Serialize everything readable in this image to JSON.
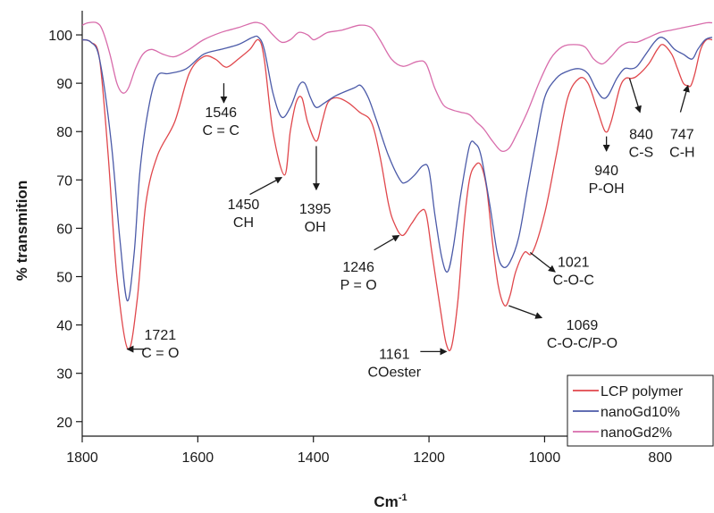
{
  "chart_data": {
    "type": "line",
    "xlabel": "Cm",
    "xlabel_sup": "-1",
    "ylabel": "% transmition",
    "xlim": [
      1800,
      710
    ],
    "ylim": [
      17,
      105
    ],
    "x_reversed": true,
    "x_ticks": [
      1800,
      1600,
      1400,
      1200,
      1000,
      800
    ],
    "y_ticks": [
      20,
      30,
      40,
      50,
      60,
      70,
      80,
      90,
      100
    ],
    "legend_position": "bottom-right",
    "series": [
      {
        "name": "LCP polymer",
        "color": "#e0474c",
        "points": [
          [
            1800,
            99
          ],
          [
            1785,
            98.5
          ],
          [
            1770,
            95
          ],
          [
            1755,
            75
          ],
          [
            1740,
            50
          ],
          [
            1721,
            35
          ],
          [
            1705,
            45
          ],
          [
            1690,
            65
          ],
          [
            1670,
            75
          ],
          [
            1640,
            82
          ],
          [
            1615,
            92
          ],
          [
            1590,
            95.5
          ],
          [
            1570,
            95
          ],
          [
            1555,
            93.5
          ],
          [
            1546,
            93.5
          ],
          [
            1530,
            95
          ],
          [
            1510,
            97
          ],
          [
            1495,
            99
          ],
          [
            1485,
            95
          ],
          [
            1470,
            80
          ],
          [
            1450,
            71
          ],
          [
            1440,
            80
          ],
          [
            1430,
            86
          ],
          [
            1420,
            87
          ],
          [
            1410,
            82
          ],
          [
            1395,
            78
          ],
          [
            1385,
            82
          ],
          [
            1375,
            86
          ],
          [
            1360,
            87
          ],
          [
            1340,
            86
          ],
          [
            1320,
            84
          ],
          [
            1300,
            82
          ],
          [
            1285,
            75
          ],
          [
            1270,
            65
          ],
          [
            1260,
            61
          ],
          [
            1246,
            58.5
          ],
          [
            1230,
            61
          ],
          [
            1215,
            63.5
          ],
          [
            1205,
            63
          ],
          [
            1195,
            55
          ],
          [
            1180,
            43
          ],
          [
            1170,
            36
          ],
          [
            1161,
            35.5
          ],
          [
            1150,
            45
          ],
          [
            1140,
            60
          ],
          [
            1130,
            70
          ],
          [
            1120,
            73
          ],
          [
            1110,
            73
          ],
          [
            1100,
            68
          ],
          [
            1090,
            57
          ],
          [
            1080,
            48
          ],
          [
            1069,
            44
          ],
          [
            1060,
            46
          ],
          [
            1050,
            51
          ],
          [
            1035,
            55
          ],
          [
            1021,
            55
          ],
          [
            1000,
            63
          ],
          [
            980,
            75
          ],
          [
            960,
            87
          ],
          [
            940,
            91
          ],
          [
            925,
            90
          ],
          [
            910,
            85
          ],
          [
            895,
            80
          ],
          [
            885,
            82
          ],
          [
            870,
            89
          ],
          [
            860,
            91
          ],
          [
            850,
            91
          ],
          [
            840,
            91.5
          ],
          [
            820,
            94
          ],
          [
            805,
            97
          ],
          [
            795,
            98
          ],
          [
            780,
            96
          ],
          [
            770,
            93
          ],
          [
            760,
            90
          ],
          [
            752,
            89.5
          ],
          [
            747,
            89.5
          ],
          [
            740,
            92
          ],
          [
            730,
            97
          ],
          [
            720,
            99
          ],
          [
            710,
            99
          ]
        ]
      },
      {
        "name": "nanoGd10%",
        "color": "#4b5aa8",
        "points": [
          [
            1800,
            99
          ],
          [
            1785,
            98.5
          ],
          [
            1770,
            95
          ],
          [
            1750,
            78
          ],
          [
            1735,
            58
          ],
          [
            1722,
            45
          ],
          [
            1710,
            55
          ],
          [
            1700,
            72
          ],
          [
            1685,
            85
          ],
          [
            1670,
            91.5
          ],
          [
            1650,
            92
          ],
          [
            1620,
            93
          ],
          [
            1590,
            96
          ],
          [
            1560,
            97
          ],
          [
            1530,
            98
          ],
          [
            1505,
            99.5
          ],
          [
            1495,
            99.5
          ],
          [
            1485,
            97
          ],
          [
            1470,
            88
          ],
          [
            1455,
            83
          ],
          [
            1440,
            85
          ],
          [
            1425,
            89.5
          ],
          [
            1415,
            90
          ],
          [
            1405,
            87
          ],
          [
            1395,
            85
          ],
          [
            1380,
            86
          ],
          [
            1360,
            87.5
          ],
          [
            1330,
            89
          ],
          [
            1318,
            89.5
          ],
          [
            1305,
            87
          ],
          [
            1290,
            82
          ],
          [
            1270,
            75
          ],
          [
            1250,
            70
          ],
          [
            1240,
            69.5
          ],
          [
            1225,
            71
          ],
          [
            1210,
            73
          ],
          [
            1200,
            72
          ],
          [
            1190,
            63
          ],
          [
            1178,
            54
          ],
          [
            1168,
            51
          ],
          [
            1158,
            56
          ],
          [
            1145,
            67
          ],
          [
            1130,
            77
          ],
          [
            1120,
            77.5
          ],
          [
            1110,
            75
          ],
          [
            1095,
            65
          ],
          [
            1082,
            55
          ],
          [
            1072,
            52
          ],
          [
            1060,
            53
          ],
          [
            1045,
            58
          ],
          [
            1030,
            68
          ],
          [
            1015,
            78
          ],
          [
            1000,
            87
          ],
          [
            980,
            91
          ],
          [
            960,
            92.5
          ],
          [
            940,
            93
          ],
          [
            925,
            92
          ],
          [
            912,
            89
          ],
          [
            900,
            87
          ],
          [
            890,
            87.5
          ],
          [
            875,
            91
          ],
          [
            862,
            93
          ],
          [
            850,
            93
          ],
          [
            840,
            93.5
          ],
          [
            825,
            96
          ],
          [
            810,
            98.5
          ],
          [
            800,
            99.5
          ],
          [
            790,
            99
          ],
          [
            775,
            97
          ],
          [
            760,
            96
          ],
          [
            745,
            95
          ],
          [
            735,
            97
          ],
          [
            722,
            99
          ],
          [
            710,
            99.5
          ]
        ]
      },
      {
        "name": "nanoGd2%",
        "color": "#d86cab",
        "points": [
          [
            1800,
            102
          ],
          [
            1790,
            102.5
          ],
          [
            1775,
            102.5
          ],
          [
            1765,
            101
          ],
          [
            1752,
            96
          ],
          [
            1740,
            90
          ],
          [
            1730,
            88
          ],
          [
            1720,
            89
          ],
          [
            1708,
            93
          ],
          [
            1695,
            96
          ],
          [
            1680,
            97
          ],
          [
            1660,
            96
          ],
          [
            1640,
            95.5
          ],
          [
            1615,
            97
          ],
          [
            1590,
            99
          ],
          [
            1560,
            100.5
          ],
          [
            1530,
            101.5
          ],
          [
            1505,
            102.5
          ],
          [
            1495,
            102.5
          ],
          [
            1485,
            102
          ],
          [
            1470,
            100
          ],
          [
            1455,
            98.5
          ],
          [
            1440,
            99
          ],
          [
            1425,
            100.5
          ],
          [
            1410,
            100
          ],
          [
            1400,
            99
          ],
          [
            1390,
            99.5
          ],
          [
            1375,
            100.5
          ],
          [
            1350,
            101
          ],
          [
            1320,
            102
          ],
          [
            1300,
            101.5
          ],
          [
            1285,
            99
          ],
          [
            1265,
            95
          ],
          [
            1245,
            93.5
          ],
          [
            1220,
            94.5
          ],
          [
            1205,
            94
          ],
          [
            1190,
            89
          ],
          [
            1175,
            85.5
          ],
          [
            1160,
            84.5
          ],
          [
            1145,
            84
          ],
          [
            1130,
            83.5
          ],
          [
            1118,
            82
          ],
          [
            1105,
            80.5
          ],
          [
            1090,
            78
          ],
          [
            1075,
            76
          ],
          [
            1062,
            76.5
          ],
          [
            1050,
            79
          ],
          [
            1030,
            84
          ],
          [
            1010,
            90
          ],
          [
            990,
            95
          ],
          [
            970,
            97.5
          ],
          [
            950,
            98
          ],
          [
            930,
            97.5
          ],
          [
            915,
            95
          ],
          [
            900,
            94
          ],
          [
            885,
            95.5
          ],
          [
            870,
            97.5
          ],
          [
            855,
            98.5
          ],
          [
            840,
            98.5
          ],
          [
            820,
            99.5
          ],
          [
            800,
            100.5
          ],
          [
            780,
            101
          ],
          [
            760,
            101.5
          ],
          [
            740,
            102
          ],
          [
            720,
            102.5
          ],
          [
            710,
            102.5
          ]
        ]
      }
    ],
    "annotations": [
      {
        "lines": [
          "1721",
          "C = O"
        ],
        "arrow_from": [
          1690,
          35
        ],
        "arrow_to": [
          1722,
          35
        ],
        "text_x": 1665,
        "text_y": 37
      },
      {
        "lines": [
          "1546",
          "C = C"
        ],
        "arrow_from": [
          1555,
          90
        ],
        "arrow_to": [
          1555,
          86
        ],
        "text_x": 1560,
        "text_y": 83
      },
      {
        "lines": [
          "1450",
          "CH"
        ],
        "arrow_from": [
          1510,
          67
        ],
        "arrow_to": [
          1455,
          70.5
        ],
        "text_x": 1521,
        "text_y": 64
      },
      {
        "lines": [
          "1395",
          "OH"
        ],
        "arrow_from": [
          1395,
          77
        ],
        "arrow_to": [
          1395,
          68
        ],
        "text_x": 1397,
        "text_y": 63
      },
      {
        "lines": [
          "1246",
          "P = O"
        ],
        "arrow_from": [
          1295,
          55.5
        ],
        "arrow_to": [
          1252,
          58.5
        ],
        "text_x": 1322,
        "text_y": 51
      },
      {
        "lines": [
          "1161",
          "COester"
        ],
        "arrow_from": [
          1215,
          34.5
        ],
        "arrow_to": [
          1170,
          34.5
        ],
        "text_x": 1260,
        "text_y": 33
      },
      {
        "lines": [
          "1021",
          "C-O-C"
        ],
        "arrow_from": [
          1025,
          55
        ],
        "arrow_to": [
          982,
          51
        ],
        "text_x": 950,
        "text_y": 52
      },
      {
        "lines": [
          "1069",
          "C-O-C/P-O"
        ],
        "arrow_from": [
          1062,
          44
        ],
        "arrow_to": [
          1005,
          41.5
        ],
        "text_x": 935,
        "text_y": 39
      },
      {
        "lines": [
          "940",
          "P-OH"
        ],
        "arrow_from": [
          893,
          79
        ],
        "arrow_to": [
          893,
          76
        ],
        "text_x": 893,
        "text_y": 71
      },
      {
        "lines": [
          "840",
          "C-S"
        ],
        "arrow_from": [
          853,
          91
        ],
        "arrow_to": [
          835,
          84
        ],
        "text_x": 833,
        "text_y": 78.5
      },
      {
        "lines": [
          "747",
          "C-H"
        ],
        "arrow_from": [
          765,
          84
        ],
        "arrow_to": [
          752,
          89.5
        ],
        "text_x": 762,
        "text_y": 78.5
      }
    ]
  }
}
